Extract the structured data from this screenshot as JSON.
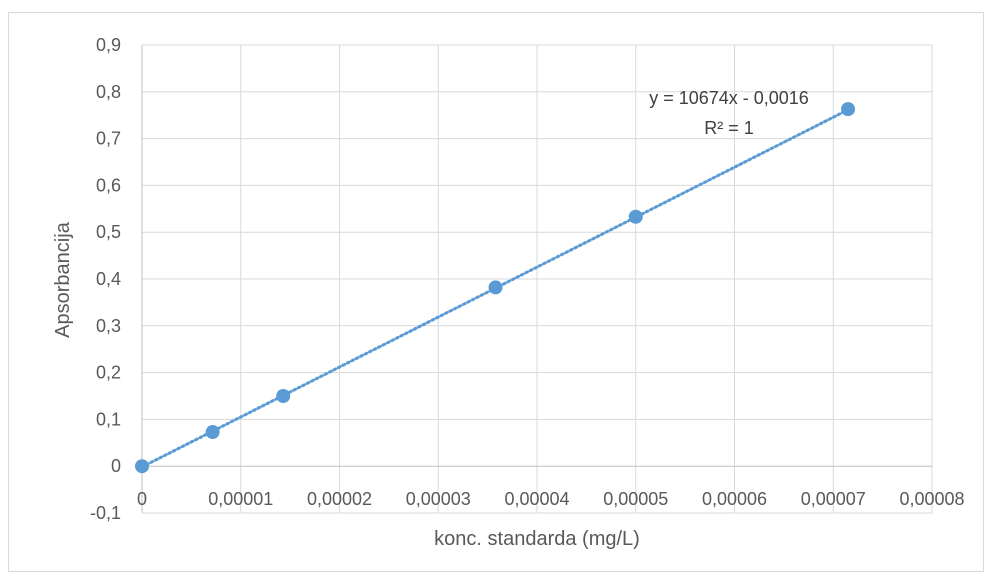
{
  "chart_data": {
    "type": "scatter",
    "title": "",
    "xlabel": "konc. standarda (mg/L)",
    "ylabel": "Apsorbancija",
    "xlim": [
      0,
      8e-05
    ],
    "ylim": [
      -0.1,
      0.9
    ],
    "x_tick_labels": [
      "0",
      "0,00001",
      "0,00002",
      "0,00003",
      "0,00004",
      "0,00005",
      "0,00006",
      "0,00007",
      "0,00008"
    ],
    "y_tick_labels": [
      "-0,1",
      "0",
      "0,1",
      "0,2",
      "0,3",
      "0,4",
      "0,5",
      "0,6",
      "0,7",
      "0,8",
      "0,9"
    ],
    "grid": true,
    "series": [
      {
        "x": [
          0,
          7.15e-06,
          1.43e-05,
          3.58e-05,
          5e-05,
          7.15e-05
        ],
        "y": [
          0,
          0.073,
          0.15,
          0.382,
          0.533,
          0.763
        ],
        "color": "#5b9bd5",
        "trendline": {
          "type": "linear",
          "slope": 10674,
          "intercept": -0.0016,
          "style": "dotted"
        }
      }
    ],
    "annotations": {
      "equation": "y = 10674x - 0,0016",
      "r_squared": "R² = 1"
    }
  }
}
